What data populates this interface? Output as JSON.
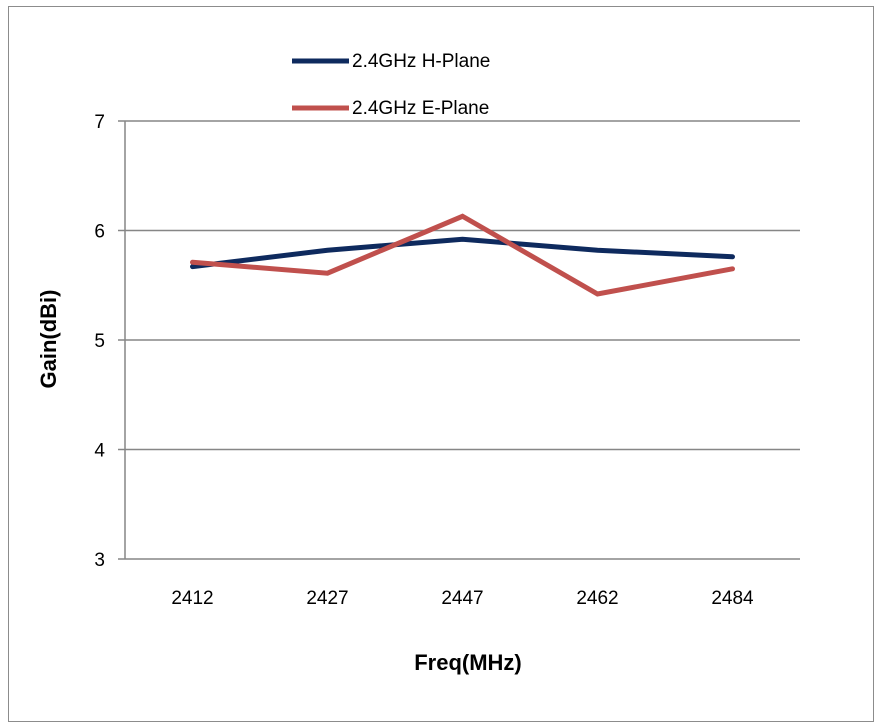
{
  "chart_data": {
    "type": "line",
    "xlabel": "Freq(MHz)",
    "ylabel": "Gain(dBi)",
    "categories": [
      "2412",
      "2427",
      "2447",
      "2462",
      "2484"
    ],
    "ylim": [
      3,
      7
    ],
    "yticks": [
      3,
      4,
      5,
      6,
      7
    ],
    "grid": true,
    "legend_position": "top-left",
    "series": [
      {
        "name": "2.4GHz H-Plane",
        "color": "#0e2a5e",
        "values": [
          5.67,
          5.82,
          5.92,
          5.82,
          5.76
        ]
      },
      {
        "name": "2.4GHz E-Plane",
        "color": "#c0504d",
        "values": [
          5.71,
          5.61,
          6.13,
          5.42,
          5.65
        ]
      }
    ]
  }
}
